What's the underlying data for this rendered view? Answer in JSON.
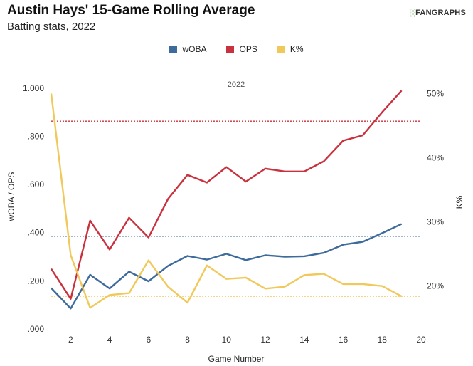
{
  "header": {
    "title": "Austin Hays' 15-Game Rolling Average",
    "subtitle": "Batting stats, 2022",
    "logo_mark": "░",
    "logo_text": "FANGRAPHS"
  },
  "chart_data": {
    "type": "line",
    "panel_label": "2022",
    "xlabel": "Game Number",
    "ylabel_left": "wOBA / OPS",
    "ylabel_right": "K%",
    "xlim": [
      1,
      20
    ],
    "ylim_left": [
      0,
      1.1
    ],
    "ylim_right": [
      13.3,
      54.6
    ],
    "x_ticks": [
      2,
      4,
      6,
      8,
      10,
      12,
      14,
      16,
      18,
      20
    ],
    "y_ticks_left": [
      {
        "value": 0,
        "label": ".000"
      },
      {
        "value": 0.2,
        "label": ".200"
      },
      {
        "value": 0.4,
        "label": ".400"
      },
      {
        "value": 0.6,
        "label": ".600"
      },
      {
        "value": 0.8,
        "label": ".800"
      },
      {
        "value": 1.0,
        "label": "1.000"
      }
    ],
    "y_ticks_right": [
      {
        "value": 20,
        "label": "20%"
      },
      {
        "value": 30,
        "label": "30%"
      },
      {
        "value": 40,
        "label": "40%"
      },
      {
        "value": 50,
        "label": "50%"
      }
    ],
    "legend_position": "top-center",
    "grid": false,
    "x": [
      1,
      2,
      3,
      4,
      5,
      6,
      7,
      8,
      9,
      10,
      11,
      12,
      13,
      14,
      15,
      16,
      17,
      18,
      19
    ],
    "series": [
      {
        "name": "wOBA",
        "axis": "left",
        "color": "#3d6b9c",
        "values": [
          0.17,
          0.085,
          0.225,
          0.168,
          0.238,
          0.198,
          0.262,
          0.303,
          0.288,
          0.312,
          0.286,
          0.306,
          0.3,
          0.302,
          0.316,
          0.35,
          0.362,
          0.398,
          0.436
        ]
      },
      {
        "name": "OPS",
        "axis": "left",
        "color": "#c8313d",
        "values": [
          0.25,
          0.125,
          0.45,
          0.33,
          0.462,
          0.38,
          0.54,
          0.64,
          0.608,
          0.672,
          0.612,
          0.666,
          0.654,
          0.654,
          0.696,
          0.782,
          0.804,
          0.9,
          0.99
        ]
      },
      {
        "name": "K%",
        "axis": "right",
        "color": "#f0c95a",
        "values": [
          50.0,
          24.8,
          16.6,
          18.6,
          18.9,
          24.0,
          19.9,
          17.4,
          23.2,
          21.1,
          21.3,
          19.6,
          19.9,
          21.7,
          21.9,
          20.3,
          20.3,
          20.0,
          18.4
        ]
      }
    ],
    "reference_lines": [
      {
        "series": "wOBA",
        "axis": "left",
        "value": 0.385,
        "color": "#3d6b9c"
      },
      {
        "series": "OPS",
        "axis": "left",
        "value": 0.863,
        "color": "#c8313d"
      },
      {
        "series": "K%",
        "axis": "right",
        "value": 18.4,
        "color": "#f0c95a"
      }
    ]
  }
}
